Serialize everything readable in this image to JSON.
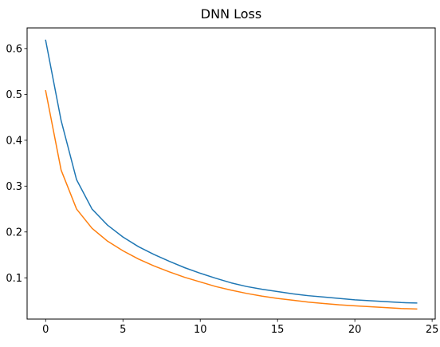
{
  "chart_data": {
    "type": "line",
    "title": "DNN Loss",
    "xlabel": "",
    "ylabel": "",
    "xlim": [
      -1.2,
      25.2
    ],
    "ylim": [
      0.01,
      0.645
    ],
    "xticks": [
      0,
      5,
      10,
      15,
      20,
      25
    ],
    "xtick_labels": [
      "0",
      "5",
      "10",
      "15",
      "20",
      "25"
    ],
    "yticks": [
      0.1,
      0.2,
      0.3,
      0.4,
      0.5,
      0.6
    ],
    "ytick_labels": [
      "0.1",
      "0.2",
      "0.3",
      "0.4",
      "0.5",
      "0.6"
    ],
    "grid": false,
    "x": [
      0,
      1,
      2,
      3,
      4,
      5,
      6,
      7,
      8,
      9,
      10,
      11,
      12,
      13,
      14,
      15,
      16,
      17,
      18,
      19,
      20,
      21,
      22,
      23,
      24
    ],
    "series": [
      {
        "color": "#1f77b4",
        "values": [
          0.618,
          0.443,
          0.314,
          0.25,
          0.215,
          0.189,
          0.168,
          0.151,
          0.136,
          0.122,
          0.11,
          0.099,
          0.089,
          0.081,
          0.075,
          0.07,
          0.065,
          0.061,
          0.058,
          0.055,
          0.052,
          0.05,
          0.048,
          0.046,
          0.045
        ]
      },
      {
        "color": "#ff7f0e",
        "values": [
          0.508,
          0.335,
          0.25,
          0.208,
          0.18,
          0.159,
          0.141,
          0.126,
          0.113,
          0.101,
          0.091,
          0.081,
          0.073,
          0.066,
          0.06,
          0.055,
          0.051,
          0.047,
          0.044,
          0.041,
          0.039,
          0.037,
          0.035,
          0.033,
          0.032
        ]
      }
    ]
  }
}
